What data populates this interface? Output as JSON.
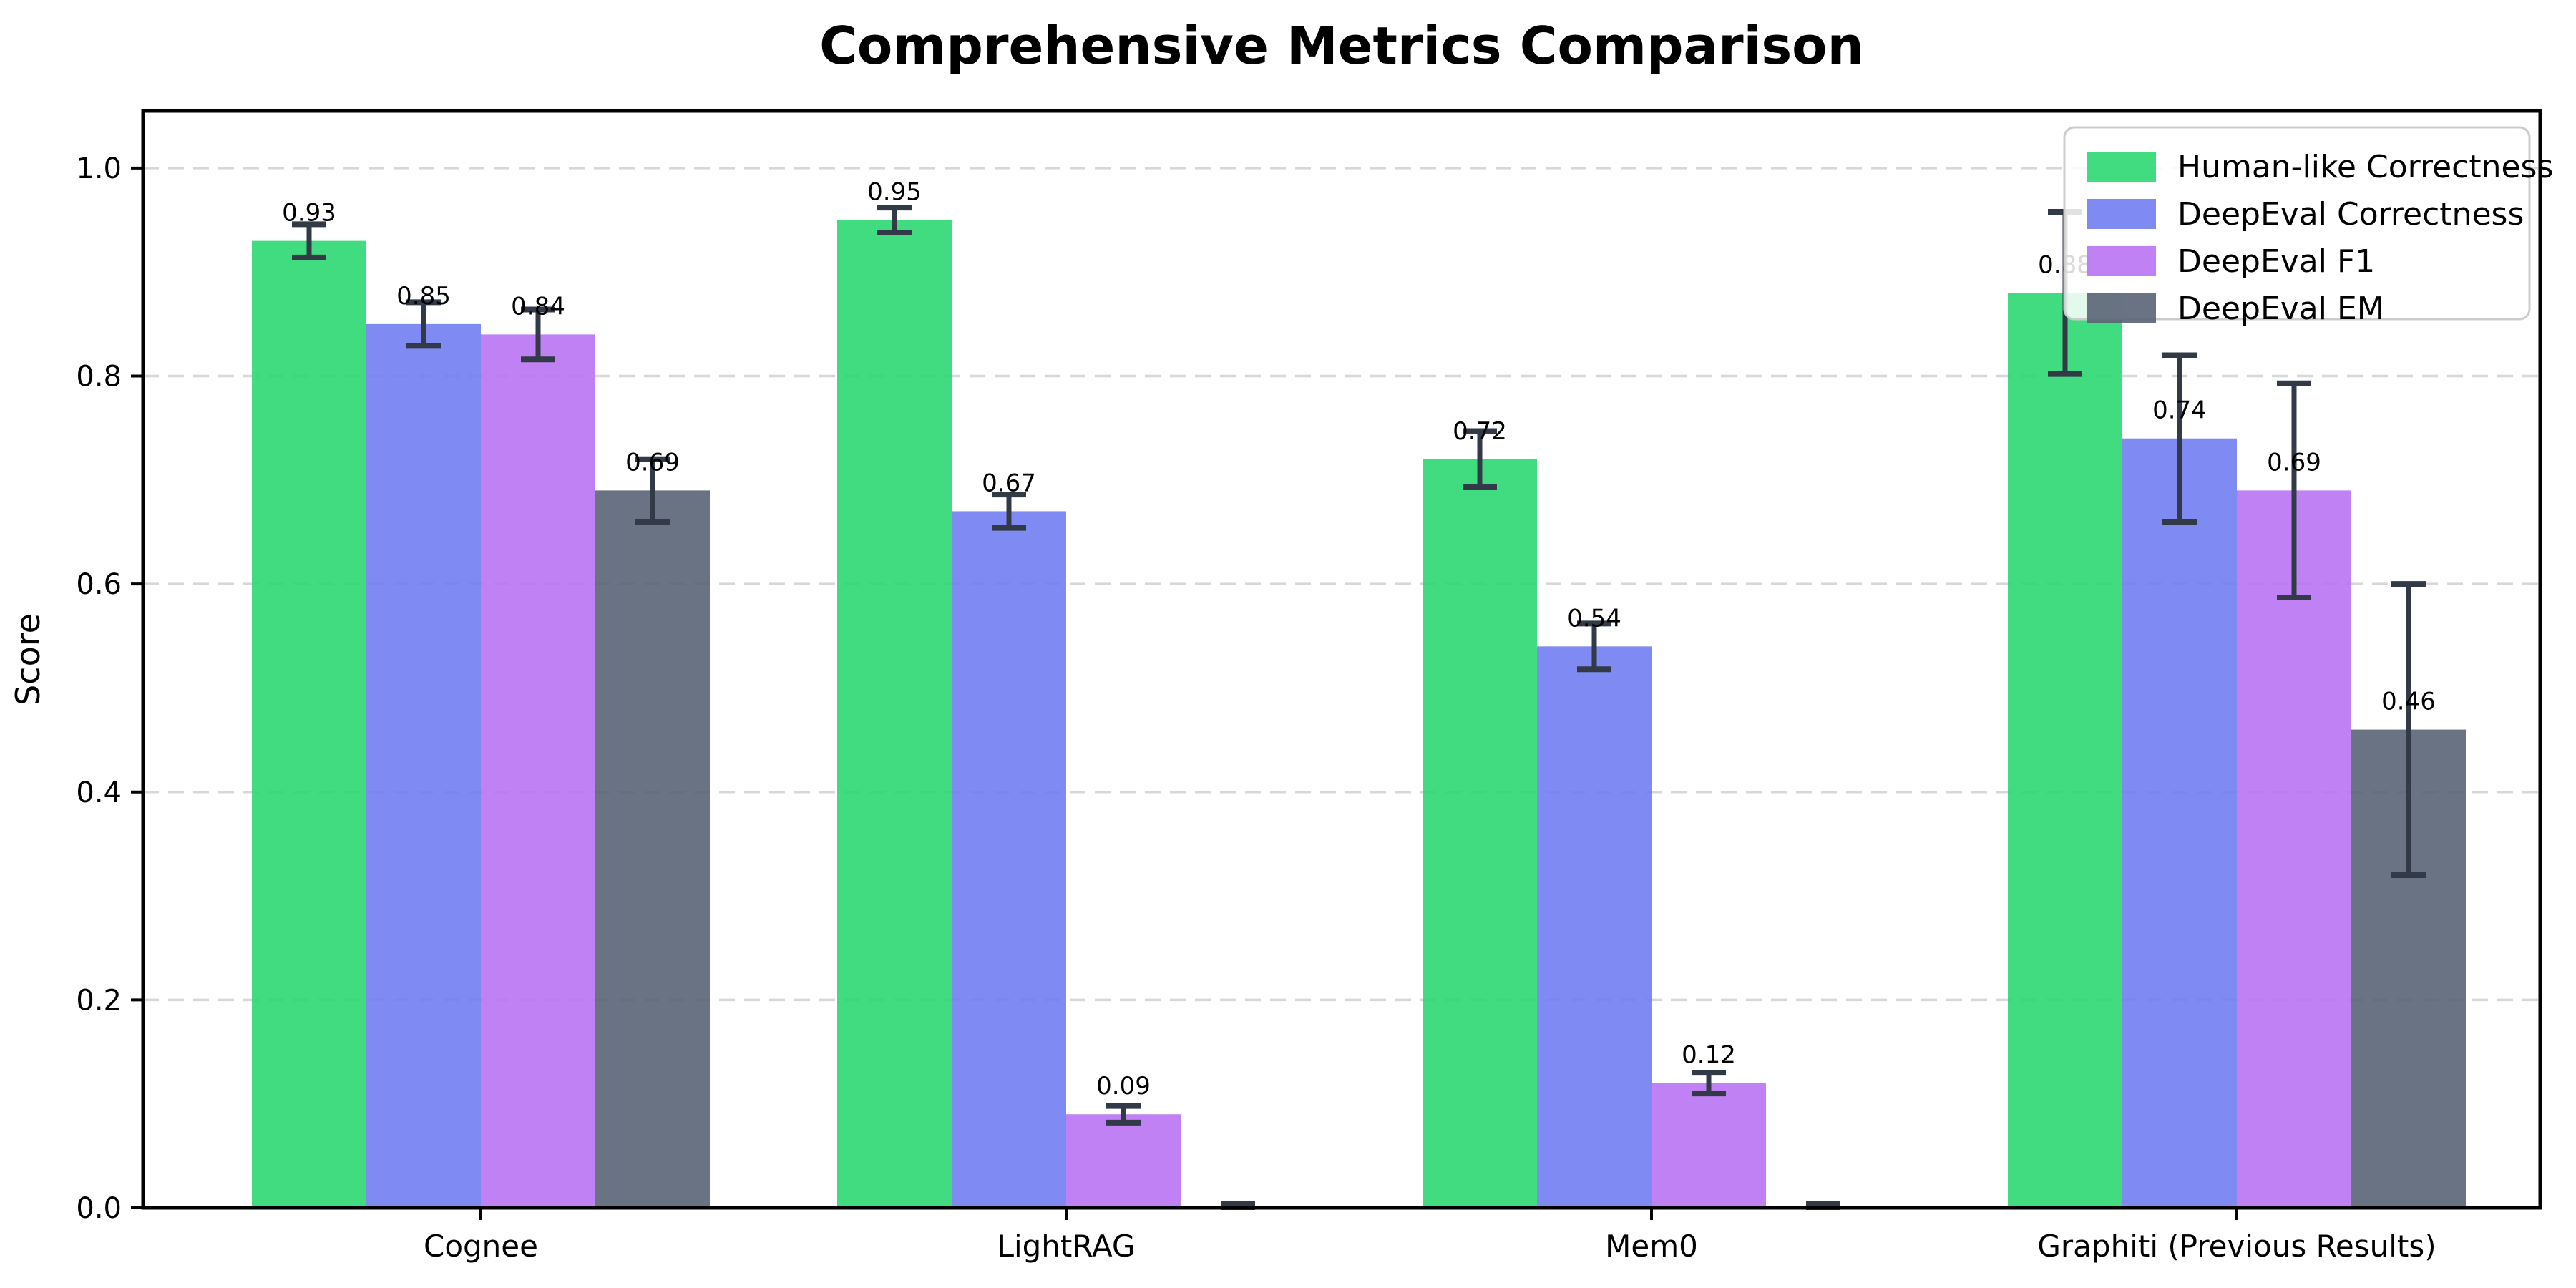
{
  "chart_data": {
    "type": "bar",
    "title": "Comprehensive Metrics Comparison",
    "xlabel": "",
    "ylabel": "Score",
    "ylim": [
      0,
      1.055
    ],
    "yticks": [
      0.0,
      0.2,
      0.4,
      0.6,
      0.8,
      1.0
    ],
    "ytick_labels": [
      "0.0",
      "0.2",
      "0.4",
      "0.6",
      "0.8",
      "1.0"
    ],
    "grid": {
      "axis": "y",
      "style": "dashed",
      "color": "#d8d8d8"
    },
    "legend_position": "upper right",
    "categories": [
      "Cognee",
      "LightRAG",
      "Mem0",
      "Graphiti (Previous Results)"
    ],
    "series": [
      {
        "name": "Human-like Correctness",
        "color": "#2cd772",
        "values": [
          0.93,
          0.95,
          0.72,
          0.88
        ],
        "errors": [
          0.016,
          0.012,
          0.027,
          0.078
        ],
        "value_labels": [
          "0.93",
          "0.95",
          "0.72",
          "0.88"
        ]
      },
      {
        "name": "DeepEval Correctness",
        "color": "#717df1",
        "values": [
          0.85,
          0.67,
          0.54,
          0.74
        ],
        "errors": [
          0.021,
          0.016,
          0.022,
          0.08
        ],
        "value_labels": [
          "0.85",
          "0.67",
          "0.54",
          "0.74"
        ]
      },
      {
        "name": "DeepEval F1",
        "color": "#b873f3",
        "values": [
          0.84,
          0.09,
          0.12,
          0.69
        ],
        "errors": [
          0.024,
          0.008,
          0.01,
          0.103
        ],
        "value_labels": [
          "0.84",
          "0.09",
          "0.12",
          "0.69"
        ]
      },
      {
        "name": "DeepEval EM",
        "color": "#5a6476",
        "values": [
          0.69,
          0.0,
          0.0,
          0.46
        ],
        "errors": [
          0.03,
          0.004,
          0.004,
          0.14
        ],
        "value_labels": [
          "0.69",
          null,
          null,
          "0.46"
        ]
      }
    ],
    "colors": {
      "error_bar": "#333a47",
      "grid": "#d8d8d8",
      "spine": "#000000",
      "tick_label": "#000000",
      "value_label": "#000000",
      "legend_border": "#cccccc",
      "legend_background": "#ffffff"
    }
  }
}
